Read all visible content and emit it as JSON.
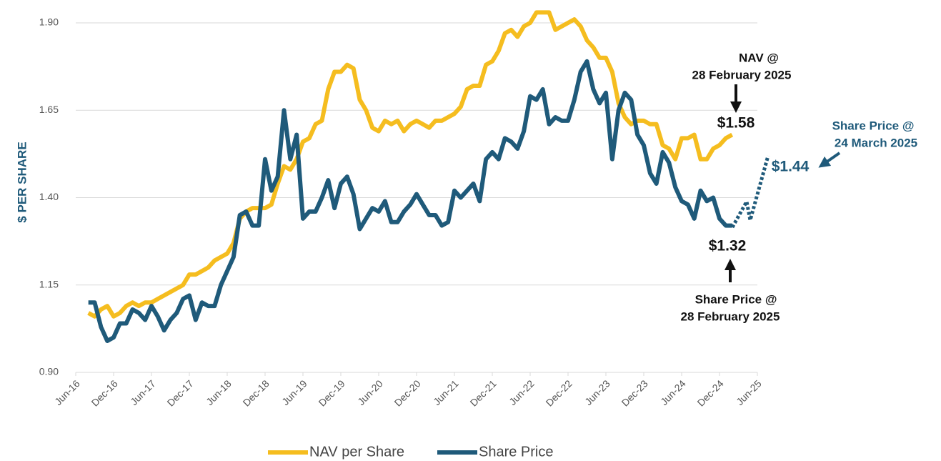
{
  "chart_data": {
    "type": "line",
    "y_label": "$ PER SHARE",
    "x": [
      "2016-08",
      "2016-09",
      "2016-10",
      "2016-11",
      "2016-12",
      "2017-01",
      "2017-02",
      "2017-03",
      "2017-04",
      "2017-05",
      "2017-06",
      "2017-07",
      "2017-08",
      "2017-09",
      "2017-10",
      "2017-11",
      "2017-12",
      "2018-01",
      "2018-02",
      "2018-03",
      "2018-04",
      "2018-05",
      "2018-06",
      "2018-07",
      "2018-08",
      "2018-09",
      "2018-10",
      "2018-11",
      "2018-12",
      "2019-01",
      "2019-02",
      "2019-03",
      "2019-04",
      "2019-05",
      "2019-06",
      "2019-07",
      "2019-08",
      "2019-09",
      "2019-10",
      "2019-11",
      "2019-12",
      "2020-01",
      "2020-02",
      "2020-03",
      "2020-04",
      "2020-05",
      "2020-06",
      "2020-07",
      "2020-08",
      "2020-09",
      "2020-10",
      "2020-11",
      "2020-12",
      "2021-01",
      "2021-02",
      "2021-03",
      "2021-04",
      "2021-05",
      "2021-06",
      "2021-07",
      "2021-08",
      "2021-09",
      "2021-10",
      "2021-11",
      "2021-12",
      "2022-01",
      "2022-02",
      "2022-03",
      "2022-04",
      "2022-05",
      "2022-06",
      "2022-07",
      "2022-08",
      "2022-09",
      "2022-10",
      "2022-11",
      "2022-12",
      "2023-01",
      "2023-02",
      "2023-03",
      "2023-04",
      "2023-05",
      "2023-06",
      "2023-07",
      "2023-08",
      "2023-09",
      "2023-10",
      "2023-11",
      "2023-12",
      "2024-01",
      "2024-02",
      "2024-03",
      "2024-04",
      "2024-05",
      "2024-06",
      "2024-07",
      "2024-08",
      "2024-09",
      "2024-10",
      "2024-11",
      "2024-12",
      "2025-01",
      "2025-02"
    ],
    "series": [
      {
        "name": "NAV per Share",
        "color": "#f5bd1f",
        "values": [
          1.07,
          1.06,
          1.08,
          1.09,
          1.06,
          1.07,
          1.09,
          1.1,
          1.09,
          1.1,
          1.1,
          1.11,
          1.12,
          1.13,
          1.14,
          1.15,
          1.18,
          1.18,
          1.19,
          1.2,
          1.22,
          1.23,
          1.24,
          1.27,
          1.34,
          1.36,
          1.37,
          1.37,
          1.37,
          1.38,
          1.44,
          1.49,
          1.48,
          1.51,
          1.56,
          1.57,
          1.61,
          1.62,
          1.71,
          1.76,
          1.76,
          1.78,
          1.77,
          1.68,
          1.65,
          1.6,
          1.59,
          1.62,
          1.61,
          1.62,
          1.59,
          1.61,
          1.62,
          1.61,
          1.6,
          1.62,
          1.62,
          1.63,
          1.64,
          1.66,
          1.71,
          1.72,
          1.72,
          1.78,
          1.79,
          1.82,
          1.87,
          1.88,
          1.86,
          1.89,
          1.9,
          1.93,
          1.93,
          1.93,
          1.88,
          1.89,
          1.9,
          1.91,
          1.89,
          1.85,
          1.83,
          1.8,
          1.8,
          1.76,
          1.67,
          1.63,
          1.61,
          1.62,
          1.62,
          1.61,
          1.61,
          1.55,
          1.54,
          1.51,
          1.57,
          1.57,
          1.58,
          1.51,
          1.51,
          1.54,
          1.55,
          1.57,
          1.58
        ]
      },
      {
        "name": "Share Price",
        "color": "#1f5a7a",
        "values": [
          1.1,
          1.1,
          1.03,
          0.99,
          1.0,
          1.04,
          1.04,
          1.08,
          1.07,
          1.05,
          1.09,
          1.06,
          1.02,
          1.05,
          1.07,
          1.11,
          1.12,
          1.05,
          1.1,
          1.09,
          1.09,
          1.15,
          1.19,
          1.23,
          1.35,
          1.36,
          1.32,
          1.32,
          1.51,
          1.42,
          1.46,
          1.65,
          1.51,
          1.58,
          1.34,
          1.36,
          1.36,
          1.4,
          1.45,
          1.37,
          1.44,
          1.46,
          1.41,
          1.31,
          1.34,
          1.37,
          1.36,
          1.39,
          1.33,
          1.33,
          1.36,
          1.38,
          1.41,
          1.38,
          1.35,
          1.35,
          1.32,
          1.33,
          1.42,
          1.4,
          1.42,
          1.44,
          1.39,
          1.51,
          1.53,
          1.51,
          1.57,
          1.56,
          1.54,
          1.59,
          1.69,
          1.68,
          1.71,
          1.61,
          1.63,
          1.62,
          1.62,
          1.68,
          1.76,
          1.79,
          1.71,
          1.67,
          1.7,
          1.51,
          1.65,
          1.7,
          1.68,
          1.58,
          1.55,
          1.47,
          1.44,
          1.53,
          1.5,
          1.43,
          1.39,
          1.38,
          1.34,
          1.42,
          1.39,
          1.4,
          1.34,
          1.32,
          1.32
        ]
      }
    ],
    "xlim": [
      "2016-06",
      "2025-06"
    ],
    "xticks": [
      {
        "value": "2016-06",
        "label": "Jun-16"
      },
      {
        "value": "2016-12",
        "label": "Dec-16"
      },
      {
        "value": "2017-06",
        "label": "Jun-17"
      },
      {
        "value": "2017-12",
        "label": "Dec-17"
      },
      {
        "value": "2018-06",
        "label": "Jun-18"
      },
      {
        "value": "2018-12",
        "label": "Dec-18"
      },
      {
        "value": "2019-06",
        "label": "Jun-19"
      },
      {
        "value": "2019-12",
        "label": "Dec-19"
      },
      {
        "value": "2020-06",
        "label": "Jun-20"
      },
      {
        "value": "2020-12",
        "label": "Dec-20"
      },
      {
        "value": "2021-06",
        "label": "Jun-21"
      },
      {
        "value": "2021-12",
        "label": "Dec-21"
      },
      {
        "value": "2022-06",
        "label": "Jun-22"
      },
      {
        "value": "2022-12",
        "label": "Dec-22"
      },
      {
        "value": "2023-06",
        "label": "Jun-23"
      },
      {
        "value": "2023-12",
        "label": "Dec-23"
      },
      {
        "value": "2024-06",
        "label": "Jun-24"
      },
      {
        "value": "2024-12",
        "label": "Dec-24"
      },
      {
        "value": "2025-06",
        "label": "Jun-25"
      }
    ],
    "ylim": [
      0.9,
      1.9
    ],
    "yticks": [
      {
        "value": 0.9,
        "label": "0.90"
      },
      {
        "value": 1.15,
        "label": "1.15"
      },
      {
        "value": 1.4,
        "label": "1.40"
      },
      {
        "value": 1.65,
        "label": "1.65"
      },
      {
        "value": 1.9,
        "label": "1.90"
      }
    ],
    "grid": true,
    "legend": "bottom",
    "annotations": {
      "nav_title": [
        "NAV @",
        "28 February 2025"
      ],
      "nav_value": "$1.58",
      "price_value": "$1.32",
      "price_title": [
        "Share Price @",
        "28 February 2025"
      ],
      "march_title": [
        "Share Price @",
        "24 March 2025"
      ],
      "march_value": "$1.44"
    }
  }
}
